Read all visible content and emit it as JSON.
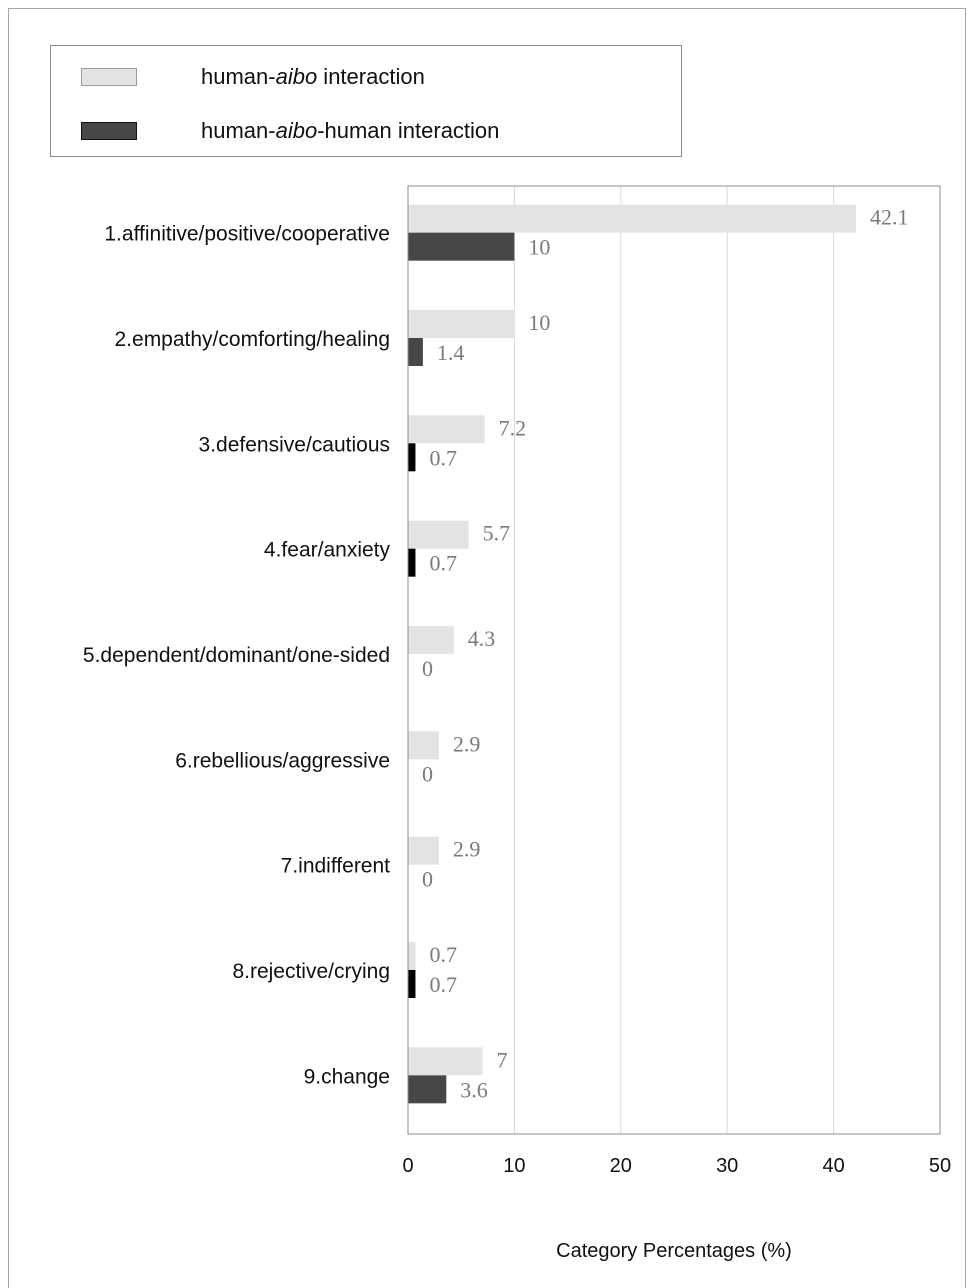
{
  "legend": {
    "items": [
      {
        "prefix": "human-",
        "italic": "aibo",
        "suffix": " interaction",
        "color": "#e3e3e3"
      },
      {
        "prefix": "human-",
        "italic": "aibo",
        "suffix": "-human interaction",
        "color": "#474747"
      }
    ]
  },
  "chart_data": {
    "type": "bar",
    "orientation": "horizontal",
    "categories": [
      "1.affinitive/positive/cooperative",
      "2.empathy/comforting/healing",
      "3.defensive/cautious",
      "4.fear/anxiety",
      "5.dependent/dominant/one-sided",
      "6.rebellious/aggressive",
      "7.indifferent",
      "8.rejective/crying",
      "9.change"
    ],
    "series": [
      {
        "name": "human-aibo interaction",
        "values": [
          42.1,
          10,
          7.2,
          5.7,
          4.3,
          2.9,
          2.9,
          0.7,
          7
        ],
        "labels": [
          "42.1",
          "10",
          "7.2",
          "5.7",
          "4.3",
          "2.9",
          "2.9",
          "0.7",
          "7"
        ],
        "color": "#e3e3e3"
      },
      {
        "name": "human-aibo-human interaction",
        "values": [
          10,
          1.4,
          0.7,
          0.7,
          0,
          0,
          0,
          0.7,
          3.6
        ],
        "labels": [
          "10",
          "1.4",
          "0.7",
          "0.7",
          "0",
          "0",
          "0",
          "0.7",
          "3.6"
        ],
        "color": "#474747"
      }
    ],
    "xlim": [
      0,
      50
    ],
    "xticks": [
      "0",
      "10",
      "20",
      "30",
      "40",
      "50"
    ],
    "xlabel": "Category Percentages (%)",
    "grid": "vertical",
    "legend_position": "top"
  }
}
